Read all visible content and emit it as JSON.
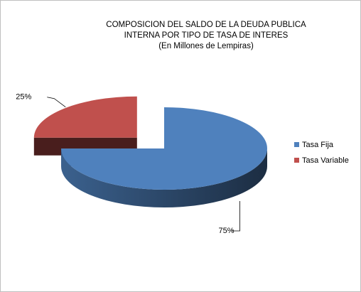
{
  "chart_data": {
    "type": "pie",
    "title": "COMPOSICION DEL SALDO DE LA DEUDA PUBLICA INTERNA POR TIPO DE TASA DE INTERES",
    "subtitle": "(En Millones de Lempiras)",
    "categories": [
      "Tasa Fija",
      "Tasa Variable"
    ],
    "values": [
      75,
      25
    ],
    "value_labels": [
      "75%",
      "25%"
    ],
    "colors": [
      "#4f81bd",
      "#c0504d"
    ],
    "legend": "right"
  }
}
